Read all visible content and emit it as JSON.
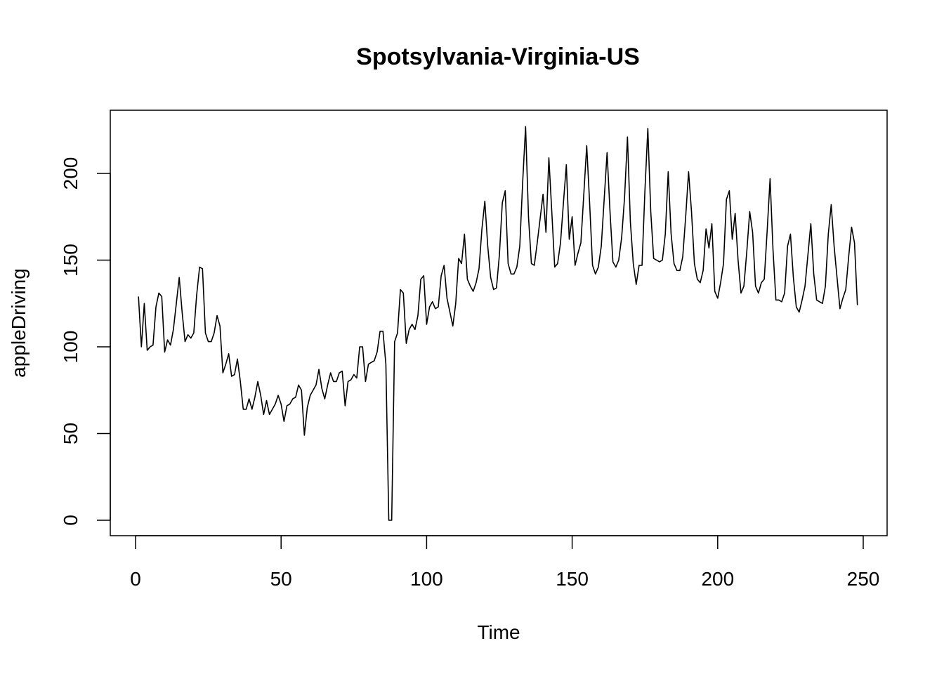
{
  "chart_data": {
    "type": "line",
    "title": "Spotsylvania-Virginia-US",
    "xlabel": "Time",
    "ylabel": "appleDriving",
    "xlim": [
      1,
      248
    ],
    "ylim": [
      0,
      227
    ],
    "x_ticks": [
      0,
      50,
      100,
      150,
      200,
      250
    ],
    "y_ticks": [
      0,
      50,
      100,
      150,
      200
    ],
    "grid": false,
    "legend": "none",
    "color": "#000000",
    "series": [
      {
        "values": [
          129,
          100,
          125,
          98,
          100,
          101,
          123,
          131,
          129,
          97,
          104,
          101,
          110,
          125,
          140,
          120,
          103,
          107,
          105,
          108,
          130,
          146,
          145,
          108,
          103,
          103,
          108,
          118,
          112,
          85,
          90,
          96,
          83,
          84,
          93,
          80,
          64,
          64,
          70,
          64,
          71,
          80,
          72,
          61,
          69,
          61,
          64,
          67,
          72,
          67,
          57,
          66,
          67,
          70,
          71,
          78,
          75,
          49,
          65,
          72,
          75,
          78,
          87,
          76,
          70,
          78,
          85,
          80,
          80,
          85,
          86,
          66,
          80,
          81,
          84,
          82,
          100,
          100,
          80,
          90,
          91,
          92,
          97,
          109,
          109,
          90,
          0,
          0,
          103,
          108,
          133,
          131,
          102,
          110,
          113,
          110,
          118,
          139,
          141,
          113,
          123,
          126,
          122,
          123,
          141,
          147,
          128,
          120,
          112,
          125,
          151,
          148,
          165,
          139,
          135,
          132,
          137,
          145,
          168,
          184,
          158,
          140,
          133,
          134,
          153,
          183,
          190,
          148,
          142,
          142,
          146,
          158,
          195,
          227,
          175,
          148,
          147,
          160,
          174,
          188,
          166,
          209,
          178,
          146,
          148,
          160,
          183,
          205,
          162,
          175,
          147,
          154,
          160,
          188,
          216,
          183,
          147,
          142,
          146,
          158,
          185,
          212,
          178,
          149,
          146,
          150,
          163,
          186,
          221,
          172,
          148,
          136,
          147,
          147,
          190,
          226,
          178,
          151,
          150,
          149,
          150,
          165,
          201,
          165,
          148,
          144,
          144,
          152,
          175,
          201,
          178,
          148,
          139,
          137,
          144,
          168,
          157,
          171,
          132,
          128,
          137,
          148,
          185,
          190,
          162,
          177,
          150,
          131,
          135,
          155,
          178,
          166,
          135,
          131,
          137,
          139,
          167,
          197,
          156,
          127,
          127,
          126,
          131,
          158,
          165,
          140,
          123,
          120,
          127,
          135,
          153,
          171,
          142,
          127,
          126,
          125,
          135,
          165,
          182,
          158,
          140,
          122,
          128,
          133,
          152,
          169,
          160,
          124
        ]
      }
    ]
  }
}
